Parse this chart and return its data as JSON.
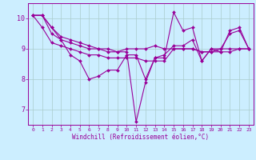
{
  "bg_color": "#cceeff",
  "grid_color": "#aacccc",
  "line_color": "#990099",
  "xlabel": "Windchill (Refroidissement éolien,°C)",
  "x_ticks": [
    0,
    1,
    2,
    3,
    4,
    5,
    6,
    7,
    8,
    9,
    10,
    11,
    12,
    13,
    14,
    15,
    16,
    17,
    18,
    19,
    20,
    21,
    22,
    23
  ],
  "ylim": [
    6.5,
    10.5
  ],
  "yticks": [
    7,
    8,
    9,
    10
  ],
  "series": [
    [
      10.1,
      10.1,
      9.7,
      9.3,
      8.8,
      8.6,
      8.0,
      8.1,
      8.3,
      8.3,
      8.8,
      8.8,
      8.0,
      8.7,
      8.8,
      9.1,
      9.1,
      9.3,
      8.6,
      9.0,
      9.0,
      9.5,
      9.6,
      9.0
    ],
    [
      10.1,
      10.1,
      9.7,
      9.4,
      9.3,
      9.2,
      9.1,
      9.0,
      9.0,
      8.9,
      9.0,
      9.0,
      9.0,
      9.1,
      9.0,
      9.0,
      9.0,
      9.0,
      8.9,
      8.9,
      9.0,
      9.0,
      9.0,
      9.0
    ],
    [
      10.1,
      10.1,
      9.5,
      9.3,
      9.2,
      9.1,
      9.0,
      9.0,
      8.9,
      8.9,
      8.9,
      6.6,
      7.9,
      8.7,
      8.7,
      10.2,
      9.6,
      9.7,
      8.6,
      9.0,
      8.9,
      9.6,
      9.7,
      9.0
    ],
    [
      10.1,
      9.7,
      9.2,
      9.1,
      9.0,
      8.9,
      8.8,
      8.8,
      8.7,
      8.7,
      8.7,
      8.7,
      8.6,
      8.6,
      8.6,
      9.0,
      9.0,
      9.0,
      8.9,
      8.9,
      8.9,
      8.9,
      9.0,
      9.0
    ]
  ]
}
